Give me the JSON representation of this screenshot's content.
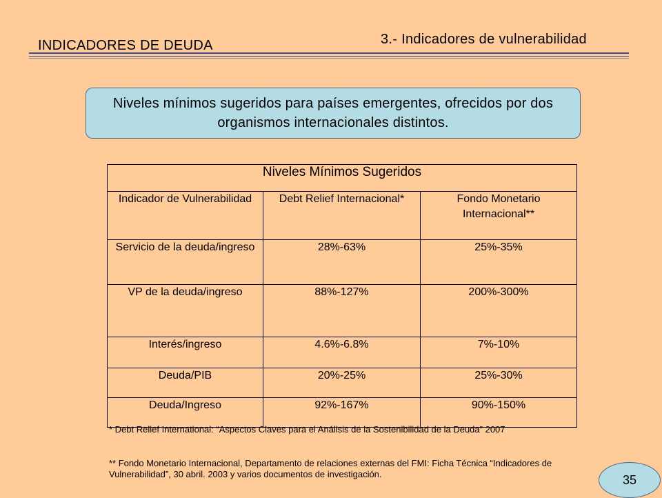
{
  "header": {
    "left_title": "INDICADORES DE DEUDA",
    "right_title": "3.- Indicadores de vulnerabilidad"
  },
  "callout": {
    "text": "Niveles mínimos sugeridos para países emergentes, ofrecidos por dos organismos internacionales distintos."
  },
  "table": {
    "title": "Niveles Mínimos Sugeridos",
    "columns": [
      "Indicador de Vulnerabilidad",
      "Debt Relief Internacional*",
      "Fondo Monetario Internacional**"
    ],
    "rows": [
      [
        "Servicio de la deuda/ingreso",
        "28%-63%",
        "25%-35%"
      ],
      [
        "VP de la deuda/ingreso",
        "88%-127%",
        "200%-300%"
      ],
      [
        "Interés/ingreso",
        "4.6%-6.8%",
        "7%-10%"
      ],
      [
        "Deuda/PIB",
        "20%-25%",
        "25%-30%"
      ],
      [
        "Deuda/Ingreso",
        "92%-167%",
        "90%-150%"
      ]
    ]
  },
  "footnotes": {
    "note1": "* Debt Relief International: “Aspectos Claves para el Análisis de la Sostenibilidad de la Deuda” 2007",
    "note2": "** Fondo Monetario Internacional, Departamento de relaciones externas del FMI: Ficha Técnica “Indicadores de Vulnerabilidad”, 30 abril. 2003 y varios documentos de investigación."
  },
  "page_number": "35",
  "colors": {
    "background": "#FFCC99",
    "callout_fill": "#B4DCE4",
    "rule": "#3b4f8c"
  }
}
